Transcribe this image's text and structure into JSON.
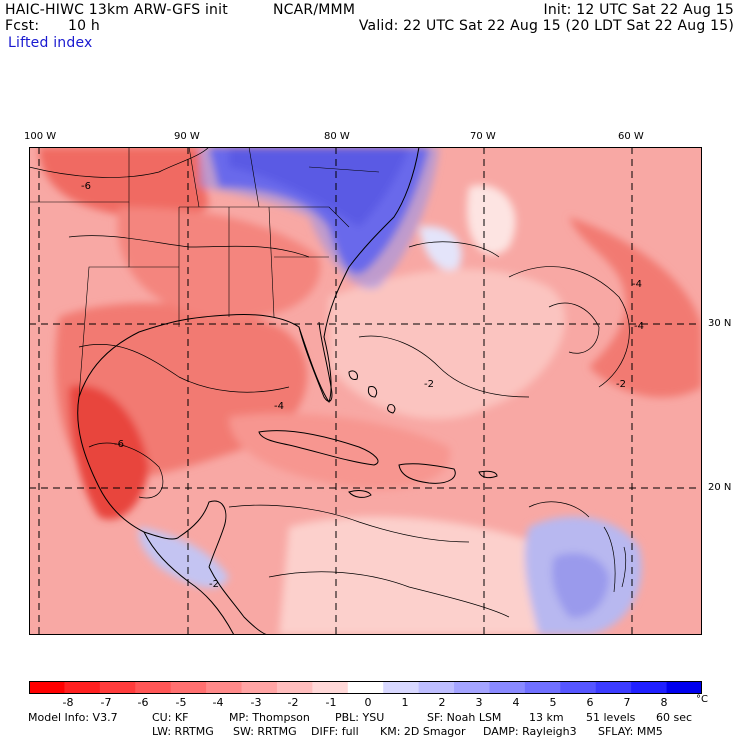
{
  "header": {
    "model_line": "HAIC-HIWC 13km ARW-GFS init",
    "org": "NCAR/MMM",
    "init": "Init: 12 UTC Sat 22 Aug 15",
    "fcst_label": "Fcst:",
    "fcst_value": "10 h",
    "valid": "Valid: 22 UTC Sat 22 Aug 15 (20 LDT Sat 22 Aug 15)",
    "field": "Lifted index"
  },
  "map": {
    "lon_labels": [
      "100 W",
      "90 W",
      "80 W",
      "70 W",
      "60 W"
    ],
    "lat_labels": [
      "30 N",
      "20 N"
    ],
    "contour_labels": [
      "-6",
      "-4",
      "-2",
      "-4",
      "-4",
      "-2",
      "-2",
      "-4",
      "-6"
    ],
    "colors": {
      "strong_unstable": "#e8302a",
      "unstable": "#f2706a",
      "weak_unstable": "#f8b0ac",
      "neutral": "#ffffff",
      "stable": "#b8b8f0",
      "strong_stable": "#1a1ae0"
    }
  },
  "colorbar": {
    "ticks": [
      "-8",
      "-7",
      "-6",
      "-5",
      "-4",
      "-3",
      "-2",
      "-1",
      "0",
      "1",
      "2",
      "3",
      "4",
      "5",
      "6",
      "7",
      "8"
    ],
    "unit": "°C",
    "colors": [
      "#ff0000",
      "#ff2020",
      "#ff3c3c",
      "#ff5656",
      "#ff7070",
      "#ff8a8a",
      "#ffa4a4",
      "#ffbebe",
      "#ffd8d8",
      "#ffffff",
      "#d8d8ff",
      "#bebeff",
      "#a4a4ff",
      "#8a8aff",
      "#7070ff",
      "#5656ff",
      "#3c3cff",
      "#2020ff",
      "#0000ee"
    ]
  },
  "model_info": {
    "line1": [
      "Model Info: V3.7",
      "CU: KF",
      "MP: Thompson",
      "PBL: YSU",
      "SF: Noah LSM",
      "13 km",
      "51 levels",
      "60 sec"
    ],
    "line2": [
      "LW: RRTMG",
      "SW: RRTMG",
      "DIFF: full",
      "KM: 2D Smagor",
      "DAMP: Rayleigh3",
      "SFLAY: MM5"
    ]
  }
}
